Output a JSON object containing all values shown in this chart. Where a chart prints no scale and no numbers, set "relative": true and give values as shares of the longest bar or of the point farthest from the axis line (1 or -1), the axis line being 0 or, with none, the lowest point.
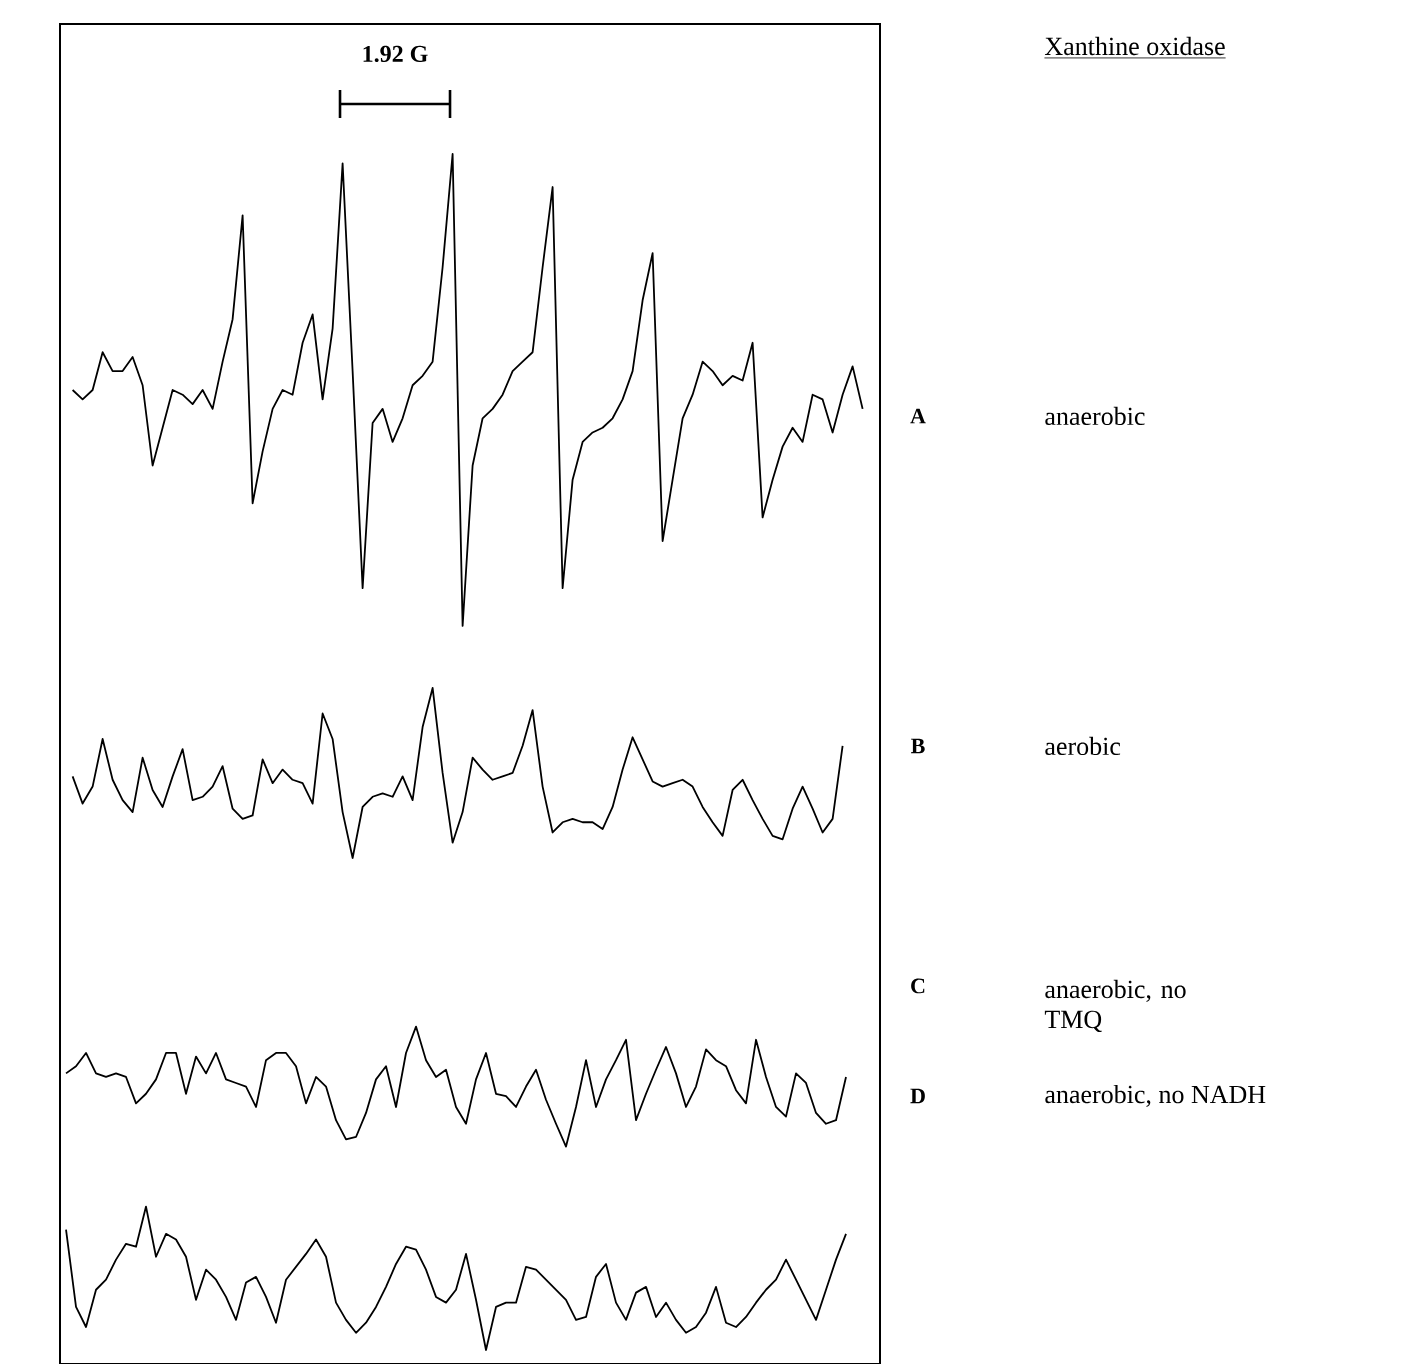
{
  "chart_data": [
    {
      "type": "line",
      "relative": true,
      "annotations": [
        "1.92 G",
        "Xanthine oxidase",
        "anaerobic"
      ],
      "categories": [
        null,
        null,
        null,
        null,
        null,
        null,
        null,
        null,
        null,
        null,
        null,
        null,
        null,
        null,
        null,
        null,
        null,
        null,
        null,
        null,
        null,
        null,
        null,
        null,
        null,
        null,
        null,
        null,
        null,
        null,
        null,
        null,
        null,
        null,
        null,
        null,
        null,
        null,
        null,
        null,
        null,
        null,
        null,
        null,
        null,
        null,
        null,
        null,
        null,
        null,
        null,
        null,
        null,
        null,
        null,
        null,
        null,
        null,
        null,
        null,
        null,
        null,
        null,
        null,
        null,
        null,
        null,
        null,
        null,
        null,
        null,
        null,
        null,
        null,
        null,
        null,
        null,
        null,
        null,
        null
      ],
      "series": [
        {
          "name": "A",
          "color": "#000000",
          "values": [
            0.5,
            0.48,
            0.5,
            0.58,
            0.54,
            0.54,
            0.57,
            0.51,
            0.34,
            0.42,
            0.5,
            0.49,
            0.47,
            0.5,
            0.46,
            0.56,
            0.65,
            0.87,
            0.26,
            0.37,
            0.46,
            0.5,
            0.49,
            0.6,
            0.66,
            0.48,
            0.63,
            0.98,
            0.54,
            0.08,
            0.43,
            0.46,
            0.39,
            0.44,
            0.51,
            0.53,
            0.56,
            0.76,
            1.0,
            0.0,
            0.34,
            0.44,
            0.46,
            0.49,
            0.54,
            0.56,
            0.58,
            0.76,
            0.93,
            0.08,
            0.31,
            0.39,
            0.41,
            0.42,
            0.44,
            0.48,
            0.54,
            0.69,
            0.79,
            0.18,
            0.31,
            0.44,
            0.49,
            0.56,
            0.54,
            0.51,
            0.53,
            0.52,
            0.6,
            0.23,
            0.31,
            0.38,
            0.42,
            0.39,
            0.49,
            0.48,
            0.41,
            0.49,
            0.55,
            0.46
          ]
        }
      ]
    },
    {
      "type": "line",
      "relative": true,
      "annotations": [
        "aerobic"
      ],
      "categories": [
        null,
        null,
        null,
        null,
        null,
        null,
        null,
        null,
        null,
        null,
        null,
        null,
        null,
        null,
        null,
        null,
        null,
        null,
        null,
        null,
        null,
        null,
        null,
        null,
        null,
        null,
        null,
        null,
        null,
        null,
        null,
        null,
        null,
        null,
        null,
        null,
        null,
        null,
        null,
        null,
        null,
        null,
        null,
        null,
        null,
        null,
        null,
        null,
        null,
        null,
        null,
        null,
        null,
        null,
        null,
        null,
        null,
        null,
        null,
        null,
        null,
        null,
        null,
        null,
        null,
        null,
        null,
        null,
        null,
        null,
        null,
        null,
        null,
        null,
        null,
        null,
        null,
        null
      ],
      "series": [
        {
          "name": "B",
          "color": "#000000",
          "values": [
            0.48,
            0.32,
            0.42,
            0.7,
            0.46,
            0.34,
            0.27,
            0.59,
            0.4,
            0.3,
            0.48,
            0.64,
            0.34,
            0.36,
            0.42,
            0.54,
            0.29,
            0.23,
            0.25,
            0.58,
            0.44,
            0.52,
            0.46,
            0.44,
            0.32,
            0.85,
            0.7,
            0.27,
            0.0,
            0.3,
            0.36,
            0.38,
            0.36,
            0.48,
            0.34,
            0.77,
            1.0,
            0.5,
            0.09,
            0.27,
            0.59,
            0.52,
            0.46,
            0.48,
            0.5,
            0.66,
            0.87,
            0.42,
            0.15,
            0.21,
            0.23,
            0.21,
            0.21,
            0.17,
            0.3,
            0.52,
            0.71,
            0.58,
            0.45,
            0.42,
            0.44,
            0.46,
            0.42,
            0.3,
            0.21,
            0.13,
            0.4,
            0.46,
            0.34,
            0.23,
            0.13,
            0.11,
            0.29,
            0.42,
            0.29,
            0.15,
            0.23,
            0.66
          ]
        }
      ]
    },
    {
      "type": "line",
      "relative": true,
      "annotations": [
        "anaerobic, no TMQ"
      ],
      "categories": [
        null,
        null,
        null,
        null,
        null,
        null,
        null,
        null,
        null,
        null,
        null,
        null,
        null,
        null,
        null,
        null,
        null,
        null,
        null,
        null,
        null,
        null,
        null,
        null,
        null,
        null,
        null,
        null,
        null,
        null,
        null,
        null,
        null,
        null,
        null,
        null,
        null,
        null,
        null,
        null,
        null,
        null,
        null,
        null,
        null,
        null,
        null,
        null,
        null,
        null,
        null,
        null,
        null,
        null,
        null,
        null,
        null,
        null,
        null,
        null,
        null,
        null,
        null,
        null,
        null,
        null,
        null,
        null,
        null,
        null,
        null,
        null,
        null,
        null,
        null,
        null,
        null,
        null,
        null
      ],
      "series": [
        {
          "name": "C",
          "color": "#000000",
          "values": [
            0.61,
            0.67,
            0.78,
            0.61,
            0.58,
            0.61,
            0.58,
            0.36,
            0.44,
            0.56,
            0.78,
            0.78,
            0.44,
            0.75,
            0.61,
            0.78,
            0.56,
            0.53,
            0.5,
            0.33,
            0.72,
            0.78,
            0.78,
            0.67,
            0.36,
            0.58,
            0.5,
            0.22,
            0.06,
            0.08,
            0.28,
            0.56,
            0.67,
            0.33,
            0.78,
            1.0,
            0.72,
            0.58,
            0.64,
            0.33,
            0.19,
            0.56,
            0.78,
            0.44,
            0.42,
            0.33,
            0.5,
            0.64,
            0.39,
            0.19,
            0.0,
            0.33,
            0.72,
            0.33,
            0.56,
            0.72,
            0.89,
            0.22,
            0.44,
            0.64,
            0.83,
            0.61,
            0.33,
            0.5,
            0.81,
            0.72,
            0.67,
            0.47,
            0.36,
            0.89,
            0.58,
            0.33,
            0.25,
            0.61,
            0.53,
            0.28,
            0.19,
            0.22,
            0.58
          ]
        }
      ]
    },
    {
      "type": "line",
      "relative": true,
      "annotations": [
        "anaerobic, no NADH"
      ],
      "categories": [
        null,
        null,
        null,
        null,
        null,
        null,
        null,
        null,
        null,
        null,
        null,
        null,
        null,
        null,
        null,
        null,
        null,
        null,
        null,
        null,
        null,
        null,
        null,
        null,
        null,
        null,
        null,
        null,
        null,
        null,
        null,
        null,
        null,
        null,
        null,
        null,
        null,
        null,
        null,
        null,
        null,
        null,
        null,
        null,
        null,
        null,
        null,
        null,
        null,
        null,
        null,
        null,
        null,
        null,
        null,
        null,
        null,
        null,
        null,
        null,
        null,
        null,
        null,
        null,
        null,
        null,
        null,
        null,
        null,
        null,
        null,
        null,
        null,
        null,
        null,
        null,
        null,
        null,
        null
      ],
      "series": [
        {
          "name": "D",
          "color": "#000000",
          "values": [
            0.84,
            0.3,
            0.16,
            0.42,
            0.49,
            0.63,
            0.74,
            0.72,
            1.0,
            0.65,
            0.81,
            0.77,
            0.65,
            0.35,
            0.56,
            0.49,
            0.37,
            0.21,
            0.47,
            0.51,
            0.37,
            0.19,
            0.49,
            0.58,
            0.67,
            0.77,
            0.65,
            0.33,
            0.21,
            0.12,
            0.19,
            0.3,
            0.44,
            0.6,
            0.72,
            0.7,
            0.56,
            0.37,
            0.33,
            0.42,
            0.67,
            0.35,
            0.0,
            0.3,
            0.33,
            0.33,
            0.58,
            0.56,
            0.49,
            0.42,
            0.35,
            0.21,
            0.23,
            0.51,
            0.6,
            0.33,
            0.21,
            0.4,
            0.44,
            0.23,
            0.33,
            0.21,
            0.12,
            0.16,
            0.26,
            0.44,
            0.19,
            0.16,
            0.23,
            0.33,
            0.42,
            0.49,
            0.63,
            0.49,
            0.35,
            0.21,
            0.42,
            0.63,
            0.81
          ]
        }
      ]
    }
  ]
}
